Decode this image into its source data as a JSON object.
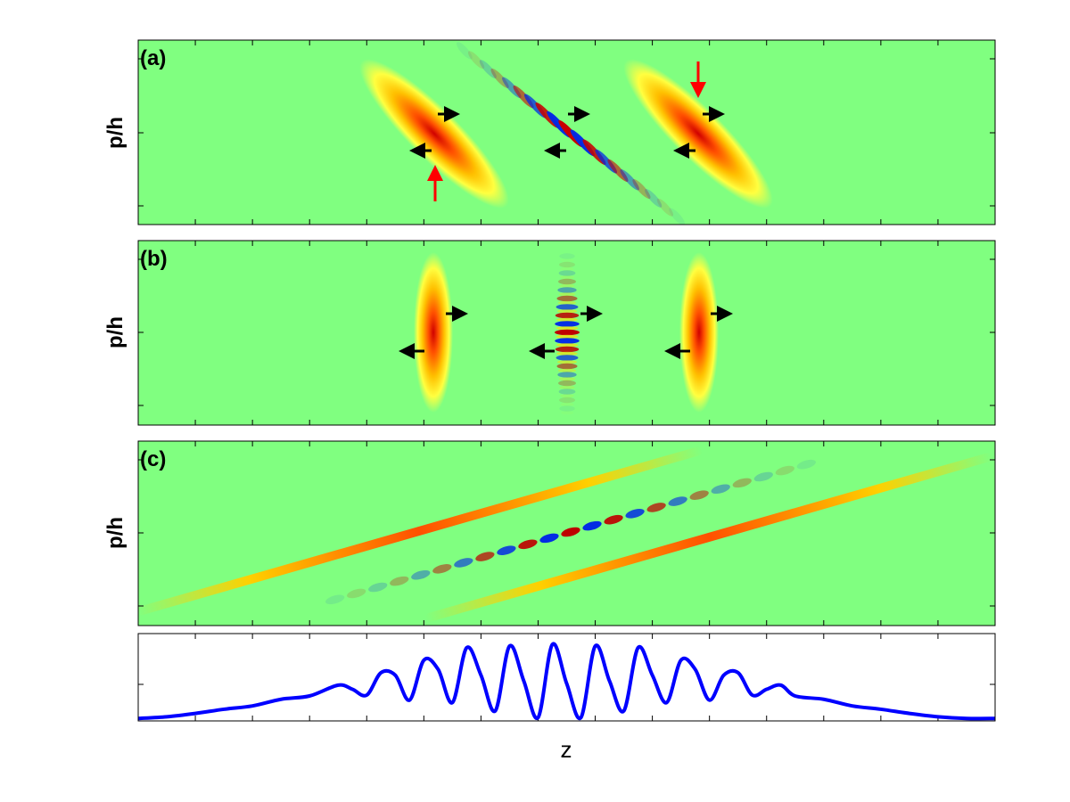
{
  "chart_data": [
    {
      "type": "heatmap",
      "panel_label": "(a)",
      "ylabel": "p/h",
      "colormap": "jet",
      "background_color": "#80ff80",
      "blobs": [
        {
          "kind": "gaussian",
          "z": -4.5,
          "p": 0.3,
          "tilt": "sheared-down-right"
        },
        {
          "kind": "interference",
          "z": 0.0,
          "p": 0.0,
          "tilt": "sheared-down-right"
        },
        {
          "kind": "gaussian",
          "z": 4.5,
          "p": 0.3,
          "tilt": "sheared-down-right"
        }
      ],
      "arrows": [
        {
          "color": "#000000",
          "direction": "right"
        },
        {
          "color": "#000000",
          "direction": "left"
        },
        {
          "color": "#ff0000",
          "direction": "up"
        },
        {
          "color": "#ff0000",
          "direction": "down"
        }
      ]
    },
    {
      "type": "heatmap",
      "panel_label": "(b)",
      "ylabel": "p/h",
      "colormap": "jet",
      "background_color": "#80ff80",
      "blobs": [
        {
          "kind": "gaussian",
          "z": -4.5,
          "p": 0.0,
          "tilt": "vertical"
        },
        {
          "kind": "interference",
          "z": 0.0,
          "p": 0.0,
          "tilt": "vertical"
        },
        {
          "kind": "gaussian",
          "z": 4.5,
          "p": 0.0,
          "tilt": "vertical"
        }
      ],
      "arrows": [
        {
          "color": "#000000",
          "direction": "right"
        },
        {
          "color": "#000000",
          "direction": "left"
        }
      ]
    },
    {
      "type": "heatmap",
      "panel_label": "(c)",
      "ylabel": "p/h",
      "colormap": "jet",
      "background_color": "#80ff80",
      "blobs": [
        {
          "kind": "stripe",
          "z": -4.5,
          "p": 0.0,
          "tilt": "sheared-up-right"
        },
        {
          "kind": "interference",
          "z": 0.0,
          "p": 0.0,
          "tilt": "sheared-up-right"
        },
        {
          "kind": "stripe",
          "z": 4.5,
          "p": 0.0,
          "tilt": "sheared-up-right"
        }
      ]
    },
    {
      "type": "line",
      "xlabel": "z",
      "line_color": "#0000ff",
      "xlim": [
        -15,
        15
      ],
      "ylim": [
        0,
        1.05
      ],
      "series": [
        {
          "x": [
            -15,
            -14,
            -13,
            -12,
            -11,
            -10,
            -9,
            -8,
            -7.5,
            -7,
            -6.5,
            -6,
            -5.5,
            -5,
            -4.5,
            -4,
            -3.5,
            -3,
            -2.5,
            -2,
            -1.5,
            -1,
            -0.5,
            0,
            0.5,
            1,
            1.5,
            2,
            2.5,
            3,
            3.5,
            4,
            4.5,
            5,
            5.5,
            6,
            6.5,
            7,
            7.5,
            8,
            9,
            10,
            11,
            12,
            13,
            14,
            15
          ],
          "values": [
            0.03,
            0.05,
            0.09,
            0.14,
            0.18,
            0.26,
            0.3,
            0.43,
            0.38,
            0.31,
            0.58,
            0.55,
            0.25,
            0.73,
            0.62,
            0.22,
            0.88,
            0.55,
            0.12,
            0.9,
            0.48,
            0.04,
            0.92,
            0.45,
            0.04,
            0.9,
            0.48,
            0.12,
            0.88,
            0.55,
            0.22,
            0.73,
            0.62,
            0.25,
            0.55,
            0.58,
            0.31,
            0.38,
            0.43,
            0.3,
            0.26,
            0.18,
            0.14,
            0.09,
            0.05,
            0.03,
            0.03
          ]
        }
      ]
    }
  ]
}
